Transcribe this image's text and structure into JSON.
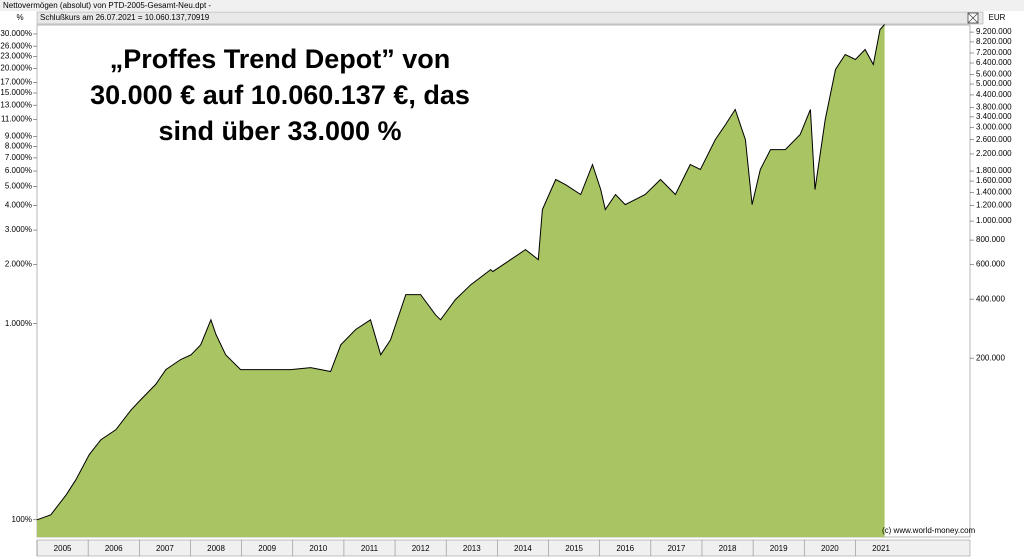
{
  "window_title": "Nettovermögen (absolut) von PTD-2005-Gesamt-Neu.dpt -",
  "chart_data": {
    "type": "area",
    "subtitle": "Schlußkurs am 26.07.2021 = 10.060.137,70919",
    "y2_label": "%",
    "y_label": "EUR",
    "annotation": [
      "„Proffes Trend Depot” von",
      "30.000 € auf 10.060.137 €, das",
      "sind über 33.000 %"
    ],
    "copyright": "(c) www.world-money.com",
    "color": "#a9c462",
    "line_color": "#000000",
    "log_scale": true,
    "x": [
      2005.0,
      2005.27,
      2005.57,
      2005.76,
      2006.02,
      2006.25,
      2006.54,
      2006.84,
      2007.03,
      2007.32,
      2007.52,
      2007.81,
      2008.01,
      2008.2,
      2008.4,
      2008.5,
      2008.69,
      2008.98,
      2009.38,
      2009.96,
      2010.35,
      2010.74,
      2010.94,
      2011.23,
      2011.52,
      2011.72,
      2011.91,
      2012.21,
      2012.5,
      2012.79,
      2012.89,
      2013.18,
      2013.48,
      2013.87,
      2013.91,
      2014.26,
      2014.55,
      2014.8,
      2014.88,
      2015.14,
      2015.33,
      2015.63,
      2015.86,
      2016.02,
      2016.11,
      2016.31,
      2016.5,
      2016.89,
      2017.19,
      2017.48,
      2017.77,
      2017.97,
      2018.26,
      2018.46,
      2018.65,
      2018.85,
      2018.98,
      2019.14,
      2019.34,
      2019.63,
      2019.92,
      2020.12,
      2020.21,
      2020.41,
      2020.61,
      2020.8,
      2021.0,
      2021.19,
      2021.35,
      2021.48,
      2021.57
    ],
    "values": [
      30000,
      31800,
      40200,
      48000,
      64400,
      76800,
      86300,
      109000,
      123000,
      147000,
      175000,
      197000,
      208000,
      234000,
      314000,
      264000,
      208000,
      175000,
      175000,
      175000,
      179000,
      171000,
      234000,
      280000,
      314000,
      208000,
      248000,
      422000,
      422000,
      333000,
      314000,
      398000,
      474000,
      566000,
      553000,
      636000,
      716000,
      636000,
      1146000,
      1629000,
      1536000,
      1366000,
      1942000,
      1449000,
      1146000,
      1366000,
      1214000,
      1366000,
      1629000,
      1366000,
      1942000,
      1833000,
      2604000,
      3106000,
      3708000,
      2604000,
      1214000,
      1833000,
      2316000,
      2316000,
      2763000,
      3708000,
      1449000,
      3295000,
      5929000,
      7069000,
      6668000,
      7500000,
      6289000,
      9487000,
      10060000
    ],
    "xlim": [
      2005,
      2023.24
    ],
    "xticks": [
      2005,
      2006,
      2007,
      2008,
      2009,
      2010,
      2011,
      2012,
      2013,
      2014,
      2015,
      2016,
      2017,
      2018,
      2019,
      2020,
      2021
    ],
    "ylim": [
      24500,
      10000000
    ],
    "yticks": [
      {
        "value": 9200000,
        "label": "9.200.000"
      },
      {
        "value": 8200000,
        "label": "8.200.000"
      },
      {
        "value": 7200000,
        "label": "7.200.000"
      },
      {
        "value": 6400000,
        "label": "6.400.000"
      },
      {
        "value": 5600000,
        "label": "5.600.000"
      },
      {
        "value": 5000000,
        "label": "5.000.000"
      },
      {
        "value": 4400000,
        "label": "4.400.000"
      },
      {
        "value": 3800000,
        "label": "3.800.000"
      },
      {
        "value": 3400000,
        "label": "3.400.000"
      },
      {
        "value": 3000000,
        "label": "3.000.000"
      },
      {
        "value": 2600000,
        "label": "2.600.000"
      },
      {
        "value": 2200000,
        "label": "2.200.000"
      },
      {
        "value": 1800000,
        "label": "1.800.000"
      },
      {
        "value": 1600000,
        "label": "1.600.000"
      },
      {
        "value": 1400000,
        "label": "1.400.000"
      },
      {
        "value": 1200000,
        "label": "1.200.000"
      },
      {
        "value": 1000000,
        "label": "1.000.000"
      },
      {
        "value": 800000,
        "label": "800.000"
      },
      {
        "value": 600000,
        "label": "600.000"
      },
      {
        "value": 400000,
        "label": "400.000"
      },
      {
        "value": 200000,
        "label": "200.000"
      }
    ],
    "y2lim": [
      81.67,
      33333
    ],
    "y2ticks": [
      {
        "value": 30000,
        "label": "30.000%"
      },
      {
        "value": 26000,
        "label": "26.000%"
      },
      {
        "value": 23000,
        "label": "23.000%"
      },
      {
        "value": 20000,
        "label": "20.000%"
      },
      {
        "value": 17000,
        "label": "17.000%"
      },
      {
        "value": 15000,
        "label": "15.000%"
      },
      {
        "value": 13000,
        "label": "13.000%"
      },
      {
        "value": 11000,
        "label": "11.000%"
      },
      {
        "value": 9000,
        "label": "9.000%"
      },
      {
        "value": 8000,
        "label": "8.000%"
      },
      {
        "value": 7000,
        "label": "7.000%"
      },
      {
        "value": 6000,
        "label": "6.000%"
      },
      {
        "value": 5000,
        "label": "5.000%"
      },
      {
        "value": 4000,
        "label": "4.000%"
      },
      {
        "value": 3000,
        "label": "3.000%"
      },
      {
        "value": 2000,
        "label": "2.000%"
      },
      {
        "value": 1000,
        "label": "1.000%"
      },
      {
        "value": 100,
        "label": "100%"
      }
    ]
  }
}
